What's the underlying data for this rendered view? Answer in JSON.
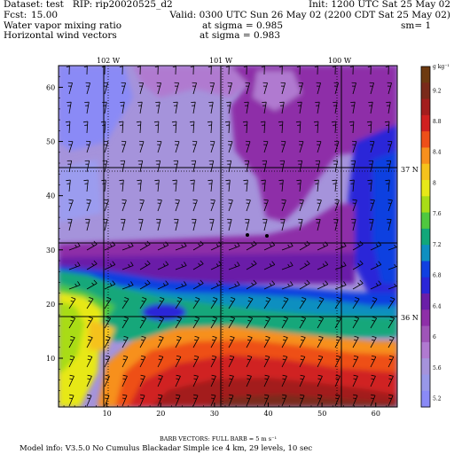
{
  "header": {
    "dataset_line": "Dataset: test   RIP: rip20020525_d2",
    "init_line": "Init: 1200 UTC Sat 25 May 02",
    "fcst_label": "Fcst:",
    "fcst_value": "15.00",
    "valid_line": "Valid: 0300 UTC Sun 26 May 02 (2200 CDT Sat 25 May 02)",
    "field1_name": "Water vapor mixing ratio",
    "field1_level": "at sigma = 0.985",
    "field1_extra": "sm= 1",
    "field2_name": "Horizontal wind vectors",
    "field2_level": "at sigma = 0.983"
  },
  "map": {
    "x_ticks": [
      "10",
      "20",
      "30",
      "40",
      "50",
      "60"
    ],
    "y_ticks": [
      "10",
      "20",
      "30",
      "40",
      "50",
      "60"
    ],
    "lon_labels": [
      "102 W",
      "101 W",
      "100 W"
    ],
    "lat_labels": [
      "37 N",
      "36 N"
    ],
    "x_range": [
      1,
      64
    ],
    "y_range": [
      1,
      64
    ]
  },
  "colorbar": {
    "unit_label": "g kg⁻¹",
    "tick_labels": [
      "9.2",
      "8.8",
      "8.4",
      "8",
      "7.6",
      "7.2",
      "6.8",
      "6.4",
      "6",
      "5.6",
      "5.2"
    ],
    "colors": [
      "#6e3a10",
      "#7a2a1a",
      "#a31d1d",
      "#d02020",
      "#ee4f19",
      "#f7901d",
      "#f5c21c",
      "#e7e818",
      "#a9dc17",
      "#4fc83f",
      "#12a77a",
      "#0f8fc0",
      "#1040e0",
      "#2a26d8",
      "#6a1ea8",
      "#8e2fa8",
      "#9f55b8",
      "#b07ad0",
      "#a593db",
      "#9898e8",
      "#8a8af6"
    ]
  },
  "footer": {
    "barb_note": "BARB VECTORS:  FULL BARB = 5 m s⁻¹",
    "model_info": "Model info: V3.5.0 No Cumulus Blackadar  Simple ice    4 km,  29 levels,   10 sec"
  }
}
